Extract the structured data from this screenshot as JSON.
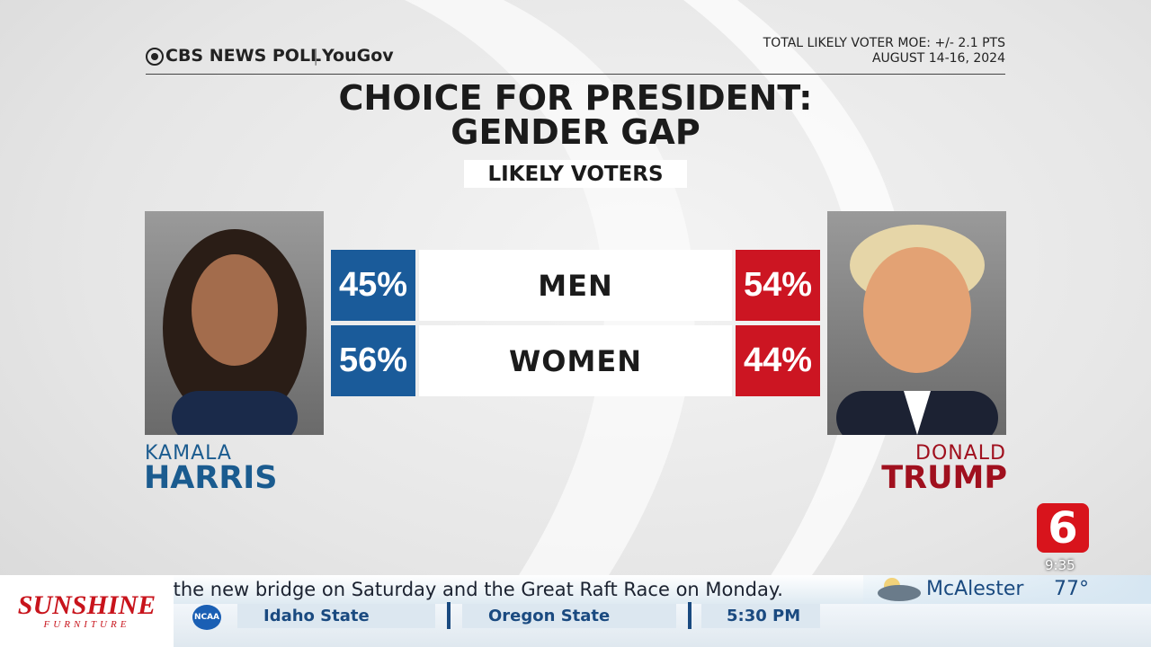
{
  "header": {
    "brand": "CBS NEWS POLL",
    "partner": "YouGov",
    "moe": "TOTAL LIKELY VOTER MOE: +/- 2.1 PTS",
    "dates": "AUGUST 14-16, 2024"
  },
  "title": [
    "CHOICE FOR PRESIDENT:",
    "GENDER GAP"
  ],
  "subtitle": "LIKELY VOTERS",
  "table": {
    "rows": [
      [
        "45%",
        "MEN",
        "54%"
      ],
      [
        "56%",
        "WOMEN",
        "44%"
      ]
    ]
  },
  "candidates": [
    {
      "first": "KAMALA",
      "last": "HARRIS"
    },
    {
      "first": "DONALD",
      "last": "TRUMP"
    }
  ],
  "ticker": {
    "sponsor": "SUNSHINE",
    "sponsor_sub": "FURNITURE",
    "crawl": "s the new bridge on Saturday and the Great Raft Race on Monday.",
    "weather_city": "McAlester",
    "weather_temp": "77°",
    "channel": "6",
    "time": "9:35",
    "league": "NCAA",
    "scores": [
      "Idaho State",
      "Oregon State",
      "5:30 PM"
    ]
  }
}
